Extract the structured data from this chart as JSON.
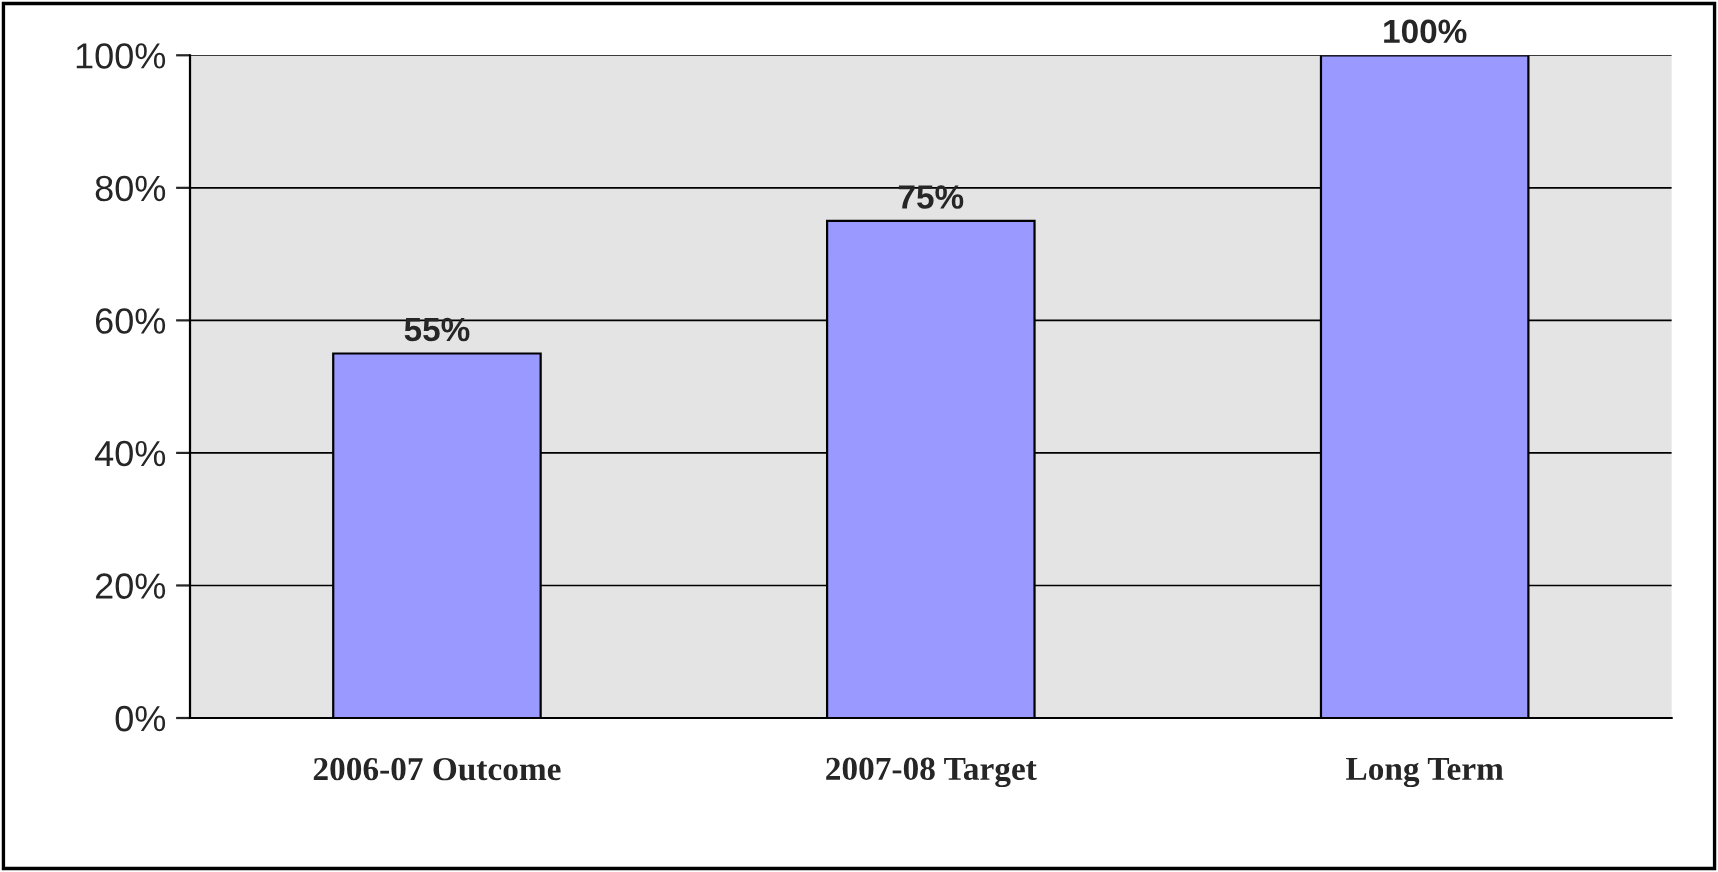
{
  "chart_data": {
    "type": "bar",
    "categories": [
      "2006-07 Outcome",
      "2007-08 Target",
      "Long Term"
    ],
    "values": [
      55,
      75,
      100
    ],
    "color": "#9999ff",
    "value_labels": [
      "55%",
      "75%",
      "100%"
    ],
    "ylim": [
      0,
      100
    ],
    "yticks": [
      {
        "value": 0,
        "label": "0%"
      },
      {
        "value": 20,
        "label": "20%"
      },
      {
        "value": 40,
        "label": "40%"
      },
      {
        "value": 60,
        "label": "60%"
      },
      {
        "value": 80,
        "label": "80%"
      },
      {
        "value": 100,
        "label": "100%"
      }
    ],
    "grid": "y",
    "legend": false
  }
}
